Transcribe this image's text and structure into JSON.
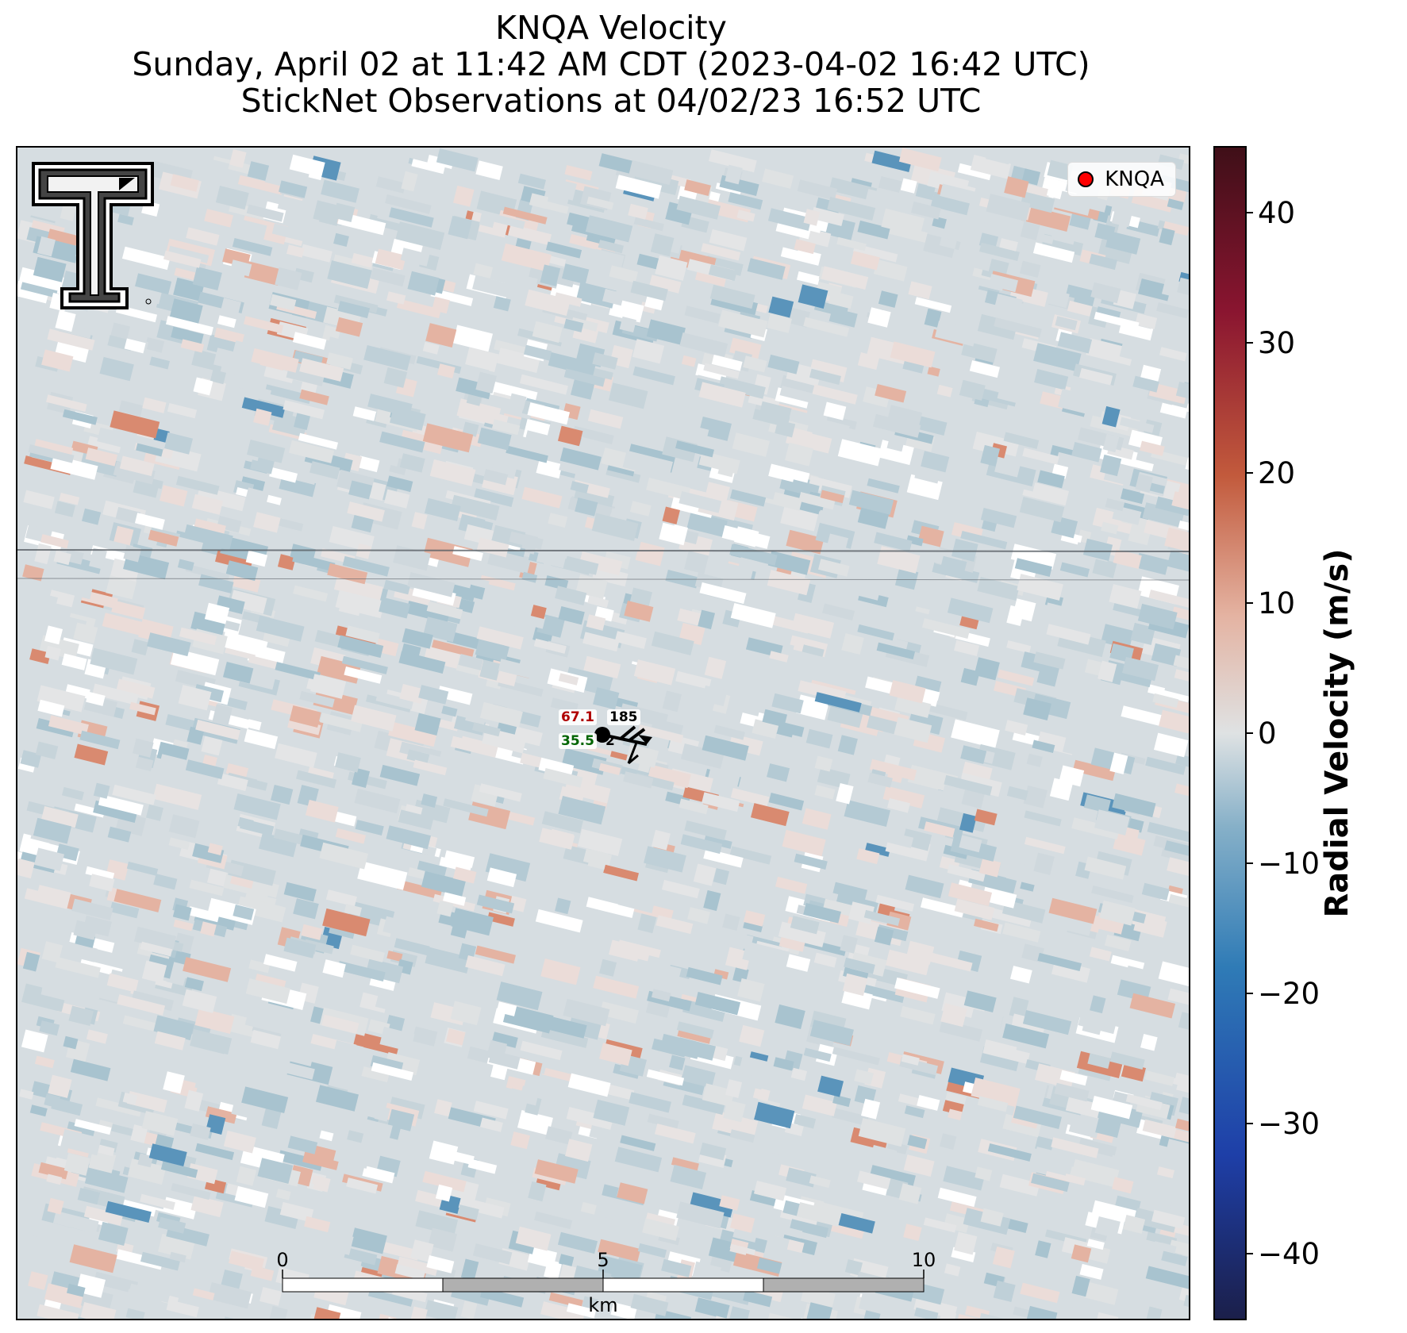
{
  "title": {
    "line1": "KNQA Velocity",
    "line2": "Sunday, April 02 at 11:42 AM CDT (2023-04-02 16:42 UTC)",
    "line3": "StickNet Observations at 04/02/23 16:52 UTC"
  },
  "legend": {
    "label": "KNQA",
    "marker_color": "#ff0000"
  },
  "scale_bar": {
    "tick_labels": [
      "0",
      "5",
      "10"
    ],
    "unit_label": "km"
  },
  "colorbar": {
    "label": "Radial Velocity (m/s)",
    "ticks": [
      40,
      30,
      20,
      10,
      0,
      -10,
      -20,
      -30,
      -40
    ],
    "tick_labels": [
      "40",
      "30",
      "20",
      "10",
      "0",
      "−10",
      "−20",
      "−30",
      "−40"
    ],
    "range": [
      -45,
      45
    ],
    "colors": [
      "#1b1f4a",
      "#1e3fa8",
      "#2f7bb6",
      "#86b0c8",
      "#dfe2e3",
      "#e4b3a2",
      "#c25a3c",
      "#8a1530",
      "#3f0f18"
    ]
  },
  "station": {
    "temperature": "67.1",
    "dewpoint": "35.5",
    "pressure": "185",
    "other": "2",
    "temperature_color": "#b00000",
    "dewpoint_color": "#006400"
  },
  "chart_data": {
    "type": "heatmap",
    "title": "KNQA Velocity",
    "subtitle": "Sunday, April 02 at 11:42 AM CDT (2023-04-02 16:42 UTC) / StickNet Observations at 04/02/23 16:52 UTC",
    "variable": "Radial Velocity (m/s)",
    "value_range": [
      -45,
      45
    ],
    "colormap": "diverging blue-gray-red",
    "typical_values": "mostly between -15 and +5 m/s, isolated +15 to +20 m/s and -20 m/s gates",
    "legend": {
      "entries": [
        "KNQA"
      ],
      "placement": "top-right"
    },
    "scale_bar_km": [
      0,
      5,
      10
    ],
    "grid": false
  },
  "logo": {
    "name": "texas-tech-double-t-logo"
  }
}
